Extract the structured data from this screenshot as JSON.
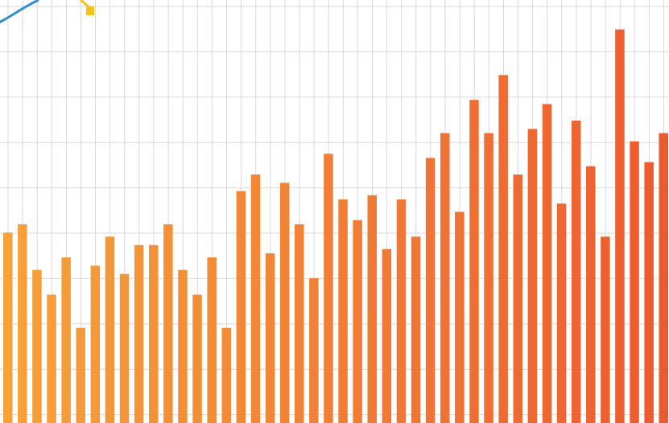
{
  "chart_data": {
    "type": "bar",
    "title": "",
    "xlabel": "",
    "ylabel": "",
    "ylim": [
      0,
      100
    ],
    "grid": true,
    "values": [
      44,
      46,
      35,
      29,
      38,
      21,
      36,
      43,
      34,
      41,
      41,
      46,
      35,
      29,
      38,
      21,
      54,
      58,
      39,
      56,
      46,
      33,
      63,
      52,
      47,
      53,
      40,
      52,
      43,
      62,
      68,
      49,
      76,
      68,
      82,
      58,
      69,
      75,
      51,
      71,
      60,
      43,
      93,
      66,
      61,
      68
    ],
    "colors": {
      "start": "#f6a33a",
      "end": "#ec5a30",
      "grid": "#d9d9d9",
      "line": "#2f8fd1",
      "line_marker": "#f5c21b"
    },
    "partial_series": {
      "type": "line",
      "values": [
        88,
        94
      ],
      "marker_value": 90
    }
  }
}
